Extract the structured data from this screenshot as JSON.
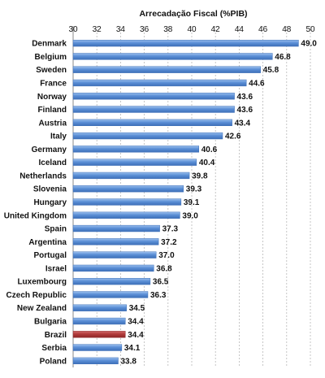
{
  "chart_data": {
    "type": "bar",
    "orientation": "horizontal",
    "title": "Arrecadação Fiscal (%PIB)",
    "xlim": [
      30,
      50
    ],
    "xticks": [
      30,
      32,
      34,
      36,
      38,
      40,
      42,
      44,
      46,
      48,
      50
    ],
    "grid": true,
    "legend": "none",
    "categories": [
      "Denmark",
      "Belgium",
      "Sweden",
      "France",
      "Norway",
      "Finland",
      "Austria",
      "Italy",
      "Germany",
      "Iceland",
      "Netherlands",
      "Slovenia",
      "Hungary",
      "United Kingdom",
      "Spain",
      "Argentina",
      "Portugal",
      "Israel",
      "Luxembourg",
      "Czech Republic",
      "New Zealand",
      "Bulgaria",
      "Brazil",
      "Serbia",
      "Poland"
    ],
    "values": [
      49.0,
      46.8,
      45.8,
      44.6,
      43.6,
      43.6,
      43.4,
      42.6,
      40.6,
      40.4,
      39.8,
      39.3,
      39.1,
      39.0,
      37.3,
      37.2,
      37.0,
      36.8,
      36.5,
      36.3,
      34.5,
      34.4,
      34.4,
      34.1,
      33.8
    ],
    "value_labels": [
      "49.0",
      "46.8",
      "45.8",
      "44.6",
      "43.6",
      "43.6",
      "43.4",
      "42.6",
      "40.6",
      "40.4",
      "39.8",
      "39.3",
      "39.1",
      "39.0",
      "37.3",
      "37.2",
      "37.0",
      "36.8",
      "36.5",
      "36.3",
      "34.5",
      "34.4",
      "34.4",
      "34.1",
      "33.8"
    ],
    "highlight": "Brazil",
    "colors": {
      "bar": "#5b8fd6",
      "bar_dark": "#3d6fb8",
      "highlight": "#b23a3a",
      "highlight_dark": "#8e2828",
      "grid": "#b8b8b8",
      "text": "#111111"
    }
  }
}
